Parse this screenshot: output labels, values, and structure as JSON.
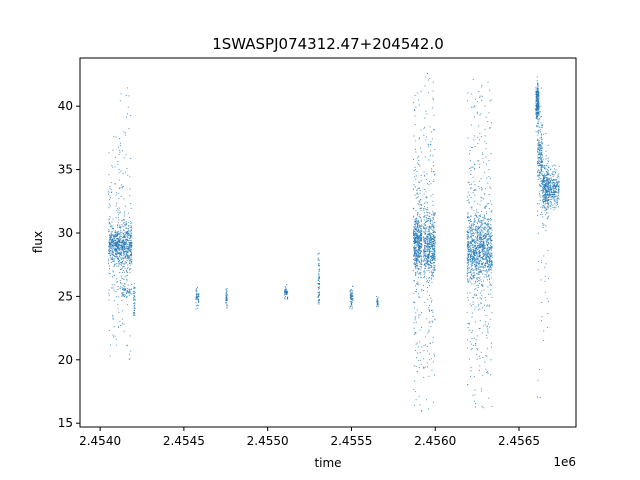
{
  "chart_data": {
    "type": "scatter",
    "title": "1SWASPJ074312.47+204542.0",
    "xlabel": "time",
    "ylabel": "flux",
    "x_offset_label": "1e6",
    "xlim": [
      2.45388,
      2.45684
    ],
    "ylim": [
      14.7,
      43.8
    ],
    "x_ticks": [
      2.454,
      2.4545,
      2.455,
      2.4555,
      2.456,
      2.4565
    ],
    "x_tick_labels": [
      "2.4540",
      "2.4545",
      "2.4550",
      "2.4555",
      "2.4560",
      "2.4565"
    ],
    "y_ticks": [
      15,
      20,
      25,
      30,
      35,
      40
    ],
    "y_tick_labels": [
      "15",
      "20",
      "25",
      "30",
      "35",
      "40"
    ],
    "grid": false,
    "point_color": "#1f77b4",
    "segments": [
      {
        "x0": 2.45405,
        "x1": 2.45412,
        "y": 29.1,
        "core": 0.7,
        "spread": 3.5,
        "n": 420,
        "outliers": 40,
        "omin": 20.0,
        "omax": 38.0
      },
      {
        "x0": 2.45412,
        "x1": 2.45419,
        "y": 29.0,
        "core": 0.9,
        "spread": 3.5,
        "n": 420,
        "outliers": 45,
        "omin": 19.5,
        "omax": 41.6
      },
      {
        "x0": 2.45413,
        "x1": 2.45418,
        "y": 25.4,
        "core": 0.2,
        "spread": 0.3,
        "n": 40,
        "outliers": 0,
        "omin": 25,
        "omax": 26
      },
      {
        "x0": 2.4542,
        "x1": 2.45421,
        "y": 24.8,
        "core": 0.6,
        "spread": 1.0,
        "n": 40,
        "outliers": 0,
        "omin": 23.5,
        "omax": 26
      },
      {
        "x0": 2.45457,
        "x1": 2.45459,
        "y": 24.9,
        "core": 0.3,
        "spread": 0.4,
        "n": 50,
        "outliers": 0,
        "omin": 24,
        "omax": 26
      },
      {
        "x0": 2.45475,
        "x1": 2.45476,
        "y": 24.8,
        "core": 0.3,
        "spread": 0.3,
        "n": 40,
        "outliers": 0,
        "omin": 24,
        "omax": 26
      },
      {
        "x0": 2.4551,
        "x1": 2.45512,
        "y": 25.3,
        "core": 0.2,
        "spread": 0.3,
        "n": 50,
        "outliers": 0,
        "omin": 24.5,
        "omax": 26
      },
      {
        "x0": 2.4553,
        "x1": 2.45531,
        "y": 27.2,
        "core": 0.8,
        "spread": 1.0,
        "n": 45,
        "outliers": 0,
        "omin": 26,
        "omax": 29
      },
      {
        "x0": 2.4553,
        "x1": 2.45531,
        "y": 25.3,
        "core": 0.4,
        "spread": 0.6,
        "n": 30,
        "outliers": 0,
        "omin": 24,
        "omax": 26
      },
      {
        "x0": 2.45549,
        "x1": 2.45551,
        "y": 24.9,
        "core": 0.4,
        "spread": 0.5,
        "n": 60,
        "outliers": 0,
        "omin": 24,
        "omax": 26.5
      },
      {
        "x0": 2.45565,
        "x1": 2.45566,
        "y": 24.5,
        "core": 0.2,
        "spread": 0.3,
        "n": 30,
        "outliers": 0,
        "omin": 24,
        "omax": 25
      },
      {
        "x0": 2.45587,
        "x1": 2.45592,
        "y": 29.2,
        "core": 1.0,
        "spread": 4.5,
        "n": 500,
        "outliers": 80,
        "omin": 15.8,
        "omax": 42.0
      },
      {
        "x0": 2.45593,
        "x1": 2.456,
        "y": 29.0,
        "core": 1.2,
        "spread": 4.5,
        "n": 550,
        "outliers": 90,
        "omin": 16.0,
        "omax": 42.6
      },
      {
        "x0": 2.45619,
        "x1": 2.45634,
        "y": 28.8,
        "core": 1.3,
        "spread": 5.0,
        "n": 1100,
        "outliers": 150,
        "omin": 16.2,
        "omax": 42.1
      },
      {
        "x0": 2.4566,
        "x1": 2.45662,
        "y": 40.3,
        "core": 0.6,
        "spread": 1.2,
        "n": 220,
        "outliers": 10,
        "omin": 38,
        "omax": 42.3
      },
      {
        "x0": 2.45661,
        "x1": 2.45664,
        "y": 36.0,
        "core": 1.2,
        "spread": 2.0,
        "n": 200,
        "outliers": 20,
        "omin": 16.5,
        "omax": 42.0
      },
      {
        "x0": 2.45664,
        "x1": 2.45668,
        "y": 33.6,
        "core": 0.8,
        "spread": 1.5,
        "n": 300,
        "outliers": 20,
        "omin": 20.5,
        "omax": 38.0
      },
      {
        "x0": 2.45668,
        "x1": 2.45674,
        "y": 33.5,
        "core": 0.6,
        "spread": 1.0,
        "n": 220,
        "outliers": 5,
        "omin": 31.5,
        "omax": 35.5
      }
    ]
  }
}
